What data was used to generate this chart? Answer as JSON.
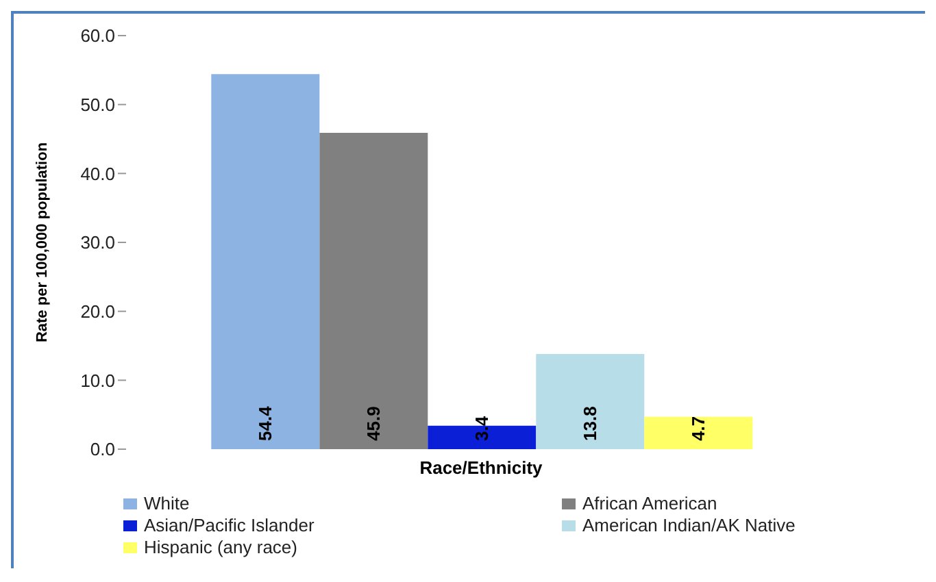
{
  "chart_data": {
    "type": "bar",
    "xlabel": "Race/Ethnicity",
    "ylabel": "Rate per 100,000 population",
    "categories": [
      null
    ],
    "series": [
      {
        "name": "White",
        "color": "#8db3e2",
        "values": [
          54.4
        ]
      },
      {
        "name": "African American",
        "color": "#808080",
        "values": [
          45.9
        ]
      },
      {
        "name": "Asian/Pacific Islander",
        "color": "#0a1fd6",
        "values": [
          3.4
        ]
      },
      {
        "name": "American Indian/AK Native",
        "color": "#b7dde8",
        "values": [
          13.8
        ]
      },
      {
        "name": "Hispanic (any race)",
        "color": "#ffff66",
        "values": [
          4.7
        ]
      }
    ],
    "ylim": [
      0,
      60
    ],
    "yticks": [
      {
        "value": 0,
        "label": "0.0"
      },
      {
        "value": 10,
        "label": "10.0"
      },
      {
        "value": 20,
        "label": "20.0"
      },
      {
        "value": 30,
        "label": "30.0"
      },
      {
        "value": 40,
        "label": "40.0"
      },
      {
        "value": 50,
        "label": "50.0"
      },
      {
        "value": 60,
        "label": "60.0"
      }
    ],
    "grid": false,
    "legend": "bottom",
    "data_labels": true
  }
}
